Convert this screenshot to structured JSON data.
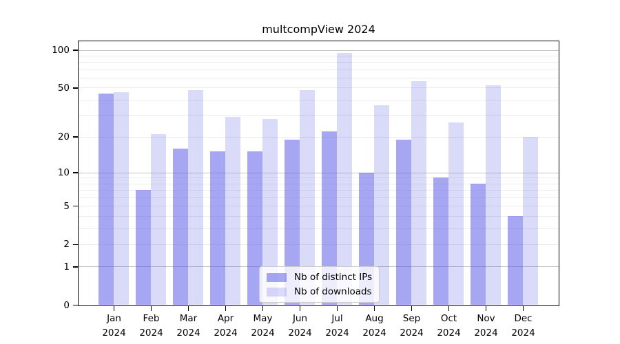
{
  "chart_data": {
    "type": "bar",
    "title": "multcompView 2024",
    "year_label": "2024",
    "categories": [
      "Jan",
      "Feb",
      "Mar",
      "Apr",
      "May",
      "Jun",
      "Jul",
      "Aug",
      "Sep",
      "Oct",
      "Nov",
      "Dec"
    ],
    "series": [
      {
        "name": "Nb of distinct IPs",
        "color": "rgba(93,93,231,0.55)",
        "values": [
          45,
          7,
          16,
          15,
          15,
          19,
          22,
          10,
          19,
          9,
          8,
          4
        ]
      },
      {
        "name": "Nb of downloads",
        "color": "rgba(93,93,231,0.23)",
        "values": [
          46,
          21,
          48,
          29,
          28,
          48,
          95,
          36,
          56,
          26,
          52,
          20
        ]
      }
    ],
    "scale": "log1p",
    "ylim": [
      0,
      100
    ],
    "y_ticks": [
      100,
      50,
      20,
      10,
      5,
      2,
      1,
      0
    ],
    "gridlines": {
      "major": [
        100,
        10,
        1
      ],
      "minor": [
        90,
        80,
        70,
        60,
        50,
        40,
        30,
        20,
        9,
        8,
        7,
        6,
        5,
        4,
        3,
        2
      ]
    },
    "grid": "on",
    "legend_position": "bottom-center"
  }
}
